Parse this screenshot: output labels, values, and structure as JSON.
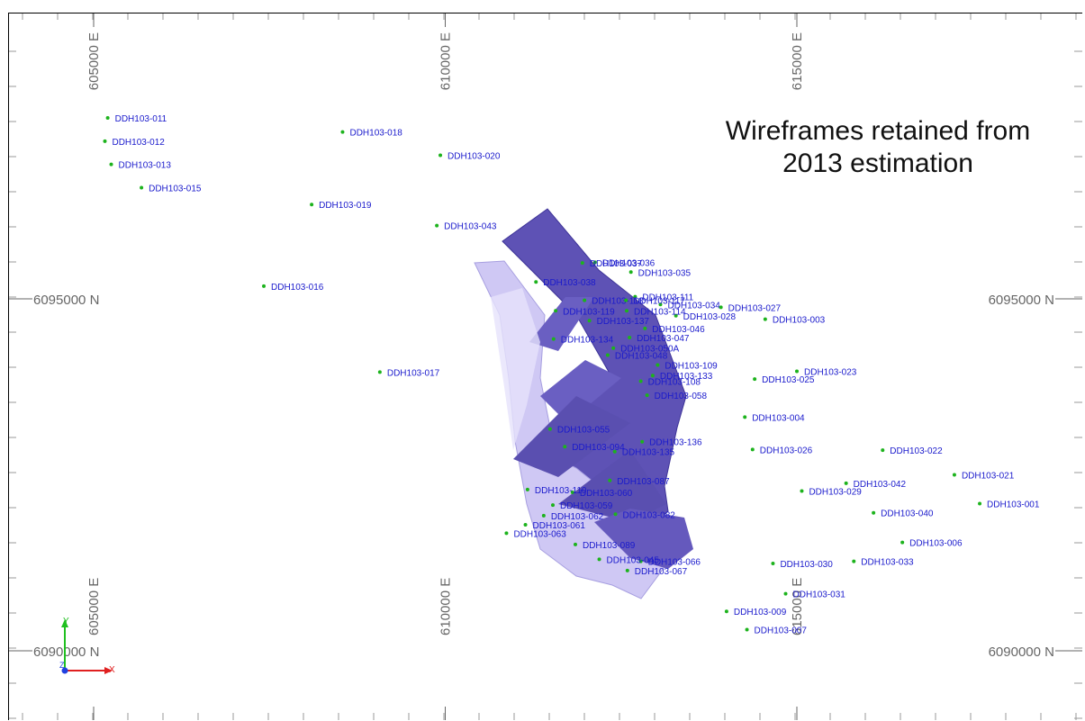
{
  "caption": {
    "line1": "Wireframes retained from",
    "line2": "2013 estimation"
  },
  "grid": {
    "eastings": [
      {
        "label": "605000 E",
        "value": 605000
      },
      {
        "label": "610000 E",
        "value": 610000
      },
      {
        "label": "615000 E",
        "value": 615000
      }
    ],
    "northings": [
      {
        "label": "6095000 N",
        "value": 6095000
      },
      {
        "label": "6090000 N",
        "value": 6090000
      }
    ]
  },
  "colors": {
    "wireframe": "#6256b8",
    "wireframe_light": "#c9c2f2",
    "collar": "#1db31d",
    "label": "#1a1acc",
    "axis_x": "#e02020",
    "axis_y": "#20c020",
    "axis_z": "#2040e0"
  },
  "axes_triad": {
    "x": "X",
    "y": "Y",
    "z": "Z"
  },
  "drillholes": [
    {
      "id": "DDH103-011",
      "e": 605200,
      "n": 6097570
    },
    {
      "id": "DDH103-012",
      "e": 605160,
      "n": 6097240
    },
    {
      "id": "DDH103-013",
      "e": 605250,
      "n": 6096910
    },
    {
      "id": "DDH103-015",
      "e": 605680,
      "n": 6096580
    },
    {
      "id": "DDH103-018",
      "e": 608540,
      "n": 6097370
    },
    {
      "id": "DDH103-020",
      "e": 609930,
      "n": 6097040
    },
    {
      "id": "DDH103-019",
      "e": 608100,
      "n": 6096340
    },
    {
      "id": "DDH103-043",
      "e": 609880,
      "n": 6096040
    },
    {
      "id": "DDH103-016",
      "e": 607420,
      "n": 6095180
    },
    {
      "id": "DDH103-017",
      "e": 609070,
      "n": 6093960
    },
    {
      "id": "DDH103-036",
      "e": 612130,
      "n": 6095520
    },
    {
      "id": "DDH103-035",
      "e": 612640,
      "n": 6095380
    },
    {
      "id": "DDH103-038",
      "e": 611290,
      "n": 6095240
    },
    {
      "id": "DDH103-111",
      "e": 612700,
      "n": 6095030
    },
    {
      "id": "DDH103-034",
      "e": 613060,
      "n": 6094920
    },
    {
      "id": "DDH103-027",
      "e": 613920,
      "n": 6094880
    },
    {
      "id": "DDH103-028",
      "e": 613280,
      "n": 6094760
    },
    {
      "id": "DDH103-003",
      "e": 614550,
      "n": 6094710
    },
    {
      "id": "DDH103-119",
      "e": 611570,
      "n": 6094830
    },
    {
      "id": "DDH103-137",
      "e": 612050,
      "n": 6094690
    },
    {
      "id": "DDH103-047",
      "e": 612620,
      "n": 6094450
    },
    {
      "id": "DDH103-134",
      "e": 611540,
      "n": 6094430
    },
    {
      "id": "DDH103-050A",
      "e": 612390,
      "n": 6094300
    },
    {
      "id": "DDH103-109",
      "e": 613020,
      "n": 6094060
    },
    {
      "id": "DDH103-023",
      "e": 615000,
      "n": 6093970
    },
    {
      "id": "DDH103-025",
      "e": 614400,
      "n": 6093860
    },
    {
      "id": "DDH103-108",
      "e": 612780,
      "n": 6093830
    },
    {
      "id": "DDH103-058",
      "e": 612870,
      "n": 6093630
    },
    {
      "id": "DDH103-004",
      "e": 614260,
      "n": 6093320
    },
    {
      "id": "DDH103-136",
      "e": 612800,
      "n": 6092970
    },
    {
      "id": "DDH103-026",
      "e": 614370,
      "n": 6092860
    },
    {
      "id": "DDH103-022",
      "e": 616220,
      "n": 6092850
    },
    {
      "id": "DDH103-135",
      "e": 612410,
      "n": 6092830
    },
    {
      "id": "DDH103-087",
      "e": 612340,
      "n": 6092420
    },
    {
      "id": "DDH103-021",
      "e": 617240,
      "n": 6092500
    },
    {
      "id": "DDH103-042",
      "e": 615700,
      "n": 6092380
    },
    {
      "id": "DDH103-029",
      "e": 615070,
      "n": 6092270
    },
    {
      "id": "DDH103-001",
      "e": 617600,
      "n": 6092090
    },
    {
      "id": "DDH103-040",
      "e": 616090,
      "n": 6091960
    },
    {
      "id": "DDH103-060",
      "e": 611810,
      "n": 6092250
    },
    {
      "id": "DDH103-059",
      "e": 611530,
      "n": 6092070
    },
    {
      "id": "DDH103-062",
      "e": 611400,
      "n": 6091920
    },
    {
      "id": "DDH103-061",
      "e": 611140,
      "n": 6091790
    },
    {
      "id": "DDH103-063",
      "e": 610870,
      "n": 6091670
    },
    {
      "id": "DDH103-082",
      "e": 612420,
      "n": 6091940
    },
    {
      "id": "DDH103-006",
      "e": 616500,
      "n": 6091540
    },
    {
      "id": "DDH103-033",
      "e": 615810,
      "n": 6091270
    },
    {
      "id": "DDH103-030",
      "e": 614660,
      "n": 6091240
    },
    {
      "id": "DDH103-066",
      "e": 612780,
      "n": 6091270
    },
    {
      "id": "DDH103-067",
      "e": 612590,
      "n": 6091140
    },
    {
      "id": "DDH103-031",
      "e": 614840,
      "n": 6090810
    },
    {
      "id": "DDH103-009",
      "e": 614000,
      "n": 6090560
    },
    {
      "id": "DDH103-007",
      "e": 614290,
      "n": 6090300
    }
  ],
  "cluster_labels": [
    {
      "id": "DDH103-037",
      "e": 611950,
      "n": 6095510
    },
    {
      "id": "DDH103-118",
      "e": 611980,
      "n": 6094980
    },
    {
      "id": "DDH103-117",
      "e": 612570,
      "n": 6094980
    },
    {
      "id": "DDH103-114",
      "e": 612580,
      "n": 6094830
    },
    {
      "id": "DDH103-046",
      "e": 612840,
      "n": 6094580
    },
    {
      "id": "DDH103-048",
      "e": 612310,
      "n": 6094200
    },
    {
      "id": "DDH103-133",
      "e": 612950,
      "n": 6093910
    },
    {
      "id": "DDH103-055",
      "e": 611490,
      "n": 6093150
    },
    {
      "id": "DDH103-094",
      "e": 611700,
      "n": 6092900
    },
    {
      "id": "DDH103-110",
      "e": 611170,
      "n": 6092290
    },
    {
      "id": "DDH103-089",
      "e": 611850,
      "n": 6091510
    },
    {
      "id": "DDH103-045",
      "e": 612190,
      "n": 6091300
    }
  ]
}
